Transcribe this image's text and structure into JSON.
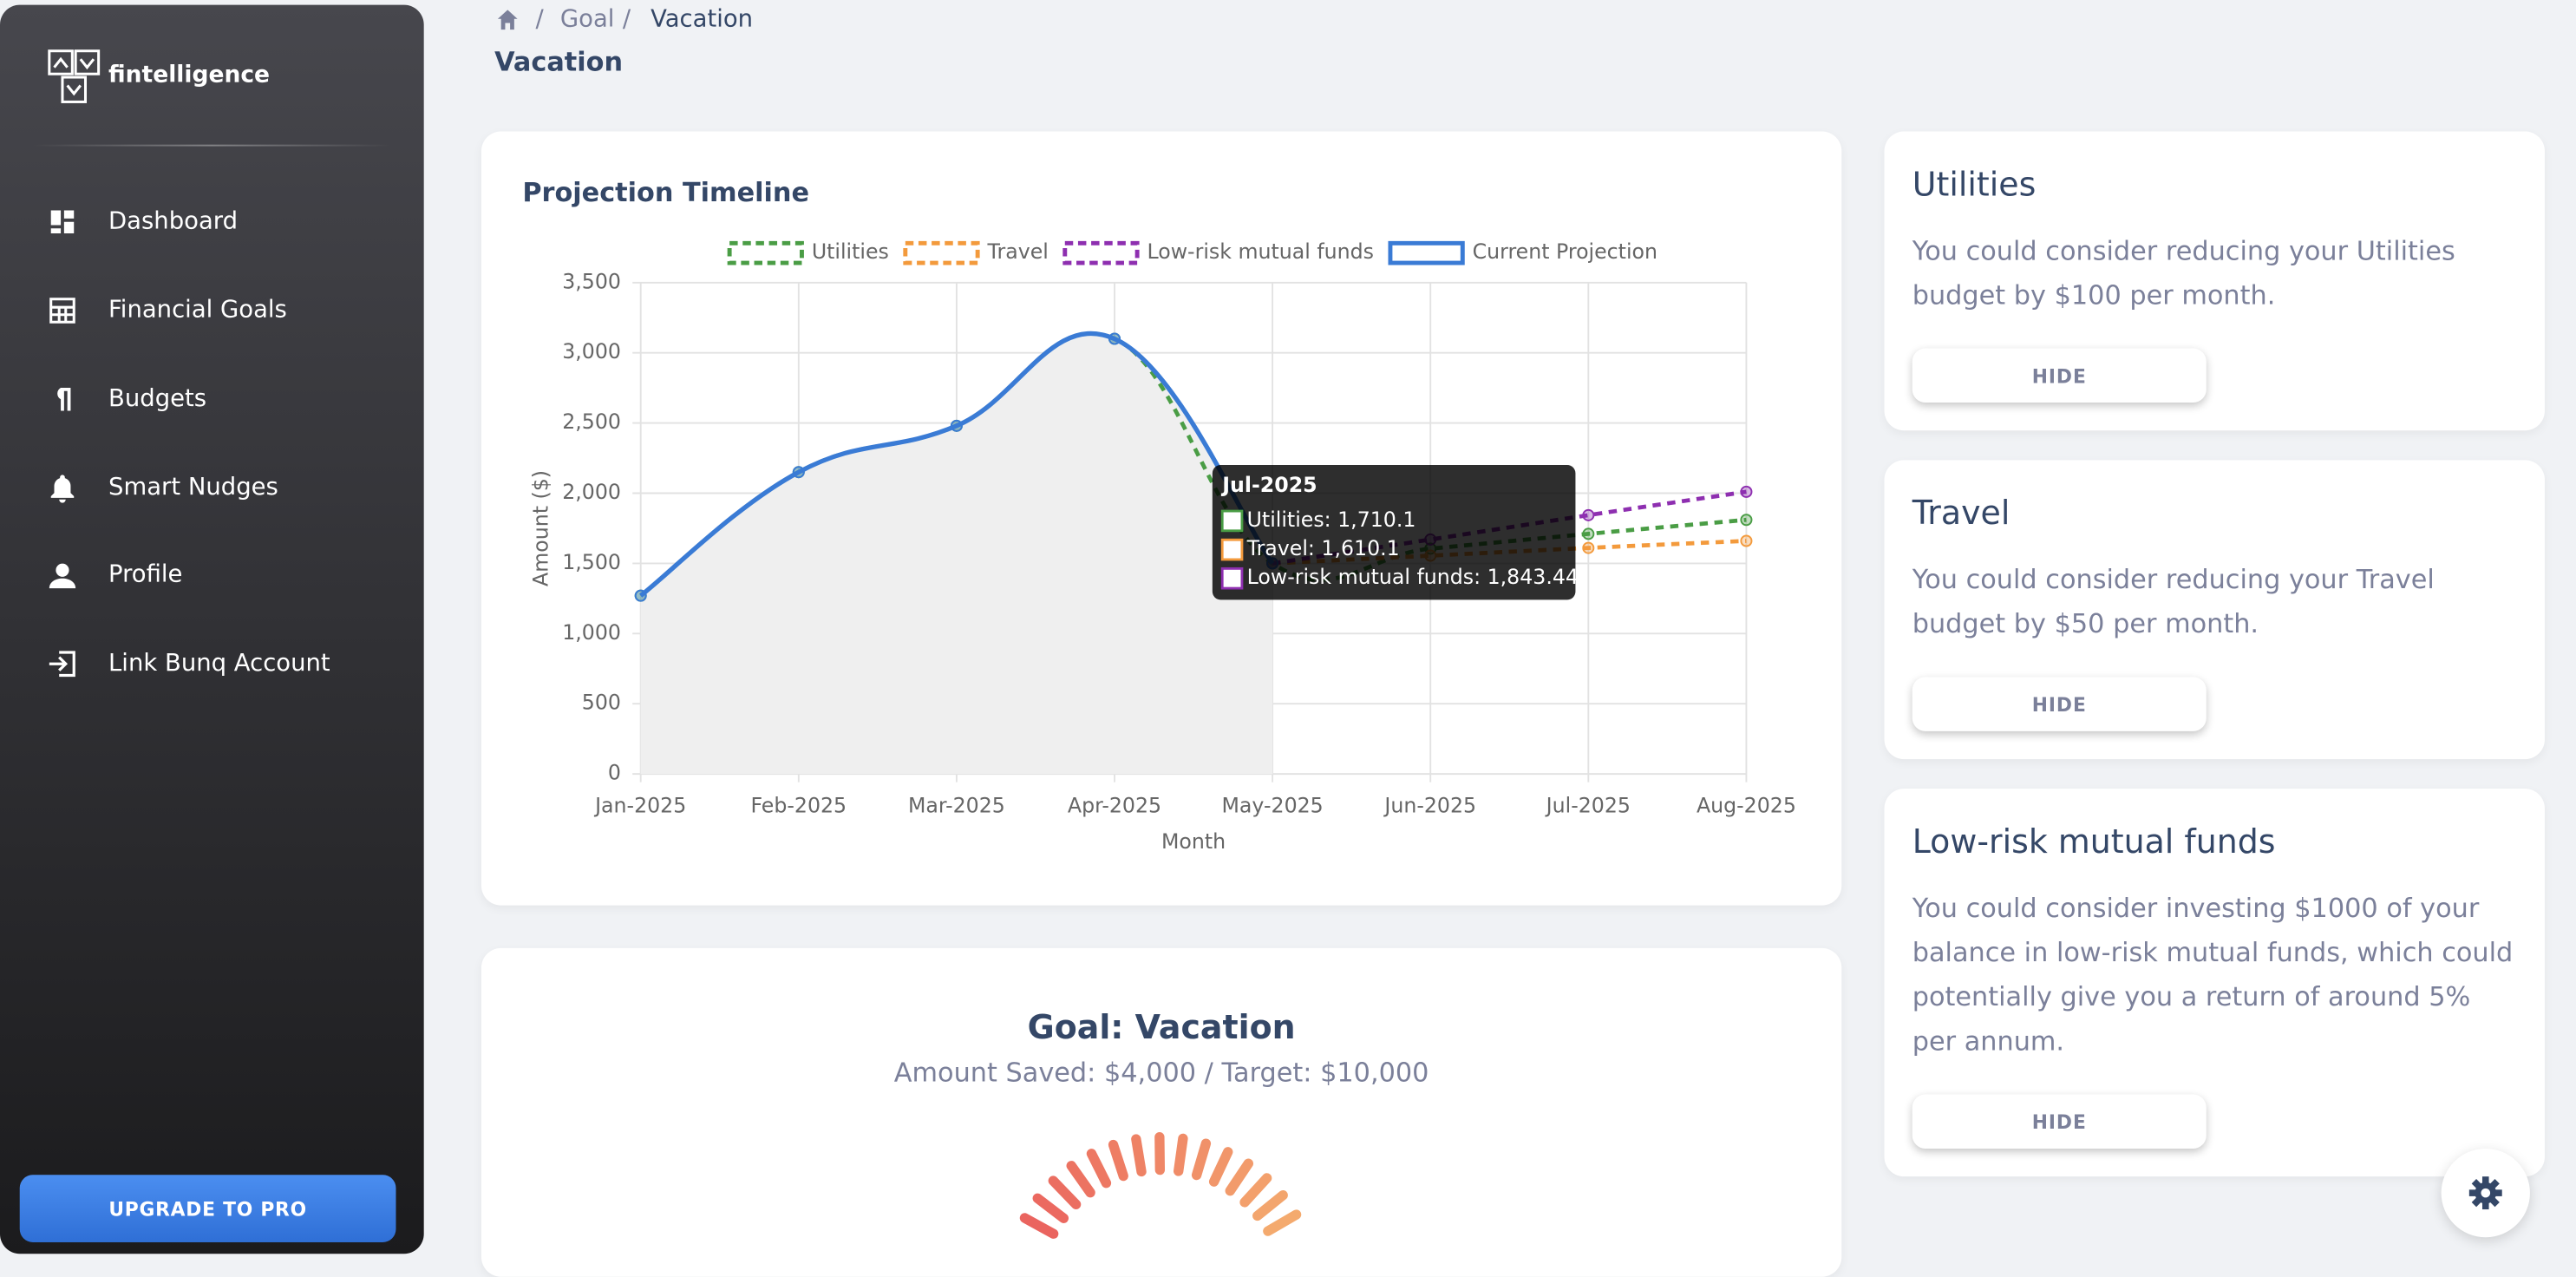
{
  "sidebar": {
    "brand": "fintelligence",
    "nav": [
      "Dashboard",
      "Financial Goals",
      "Budgets",
      "Smart Nudges",
      "Profile",
      "Link Bunq Account"
    ],
    "upgrade": "UPGRADE TO PRO"
  },
  "breadcrumb": {
    "items": [
      "Goal",
      "Vacation"
    ],
    "title": "Vacation"
  },
  "chart_data": {
    "type": "line",
    "title": "Projection Timeline",
    "x_label": "Month",
    "y_label": "Amount ($)",
    "categories": [
      "Jan-2025",
      "Feb-2025",
      "Mar-2025",
      "Apr-2025",
      "May-2025",
      "Jun-2025",
      "Jul-2025",
      "Aug-2025"
    ],
    "series": [
      {
        "name": "Utilities",
        "color": "#4a9d45",
        "dashed": true,
        "values": [
          1270,
          2150,
          2480,
          3100,
          1500,
          1605,
          1710.1,
          1810
        ]
      },
      {
        "name": "Travel",
        "color": "#f39a3c",
        "dashed": true,
        "values": [
          null,
          null,
          null,
          null,
          1500,
          1555,
          1610.1,
          1660
        ]
      },
      {
        "name": "Low-risk mutual funds",
        "color": "#8e2fb0",
        "dashed": true,
        "values": [
          null,
          null,
          null,
          null,
          1500,
          1670,
          1843.44,
          2010
        ]
      },
      {
        "name": "Current Projection",
        "color": "#3a7bd5",
        "dashed": false,
        "fill": "#efefef",
        "values": [
          1270,
          2150,
          2480,
          3100,
          1500,
          null,
          null,
          null
        ]
      }
    ],
    "ylim": [
      0,
      3500
    ],
    "yticks": [
      0,
      500,
      {
        "value": 1000,
        "label": "1,000"
      },
      {
        "value": 1500,
        "label": "1,500"
      },
      {
        "value": 2000,
        "label": "2,000"
      },
      {
        "value": 2500,
        "label": "2,500"
      },
      {
        "value": 3000,
        "label": "3,000"
      },
      {
        "value": 3500,
        "label": "3,500"
      }
    ],
    "grid": true,
    "legend": "top"
  },
  "tooltip": {
    "title": "Jul-2025",
    "items": [
      "Utilities: 1,710.1",
      "Travel: 1,610.1",
      "Low-risk mutual funds: 1,843.44"
    ]
  },
  "goal": {
    "title": "Goal: Vacation",
    "subtitle": "Amount Saved: $4,000 / Target: $10,000"
  },
  "nudges": [
    {
      "title": "Utilities",
      "text": "You could consider reducing your Utilities budget by $100 per month.",
      "button": "HIDE"
    },
    {
      "title": "Travel",
      "text": "You could consider reducing your Travel budget by $50 per month.",
      "button": "HIDE"
    },
    {
      "title": "Low-risk mutual funds",
      "text": "You could consider investing $1000 of your balance in low-risk mutual funds, which could potentially give you a return of around 5% per annum.",
      "button": "HIDE"
    }
  ]
}
